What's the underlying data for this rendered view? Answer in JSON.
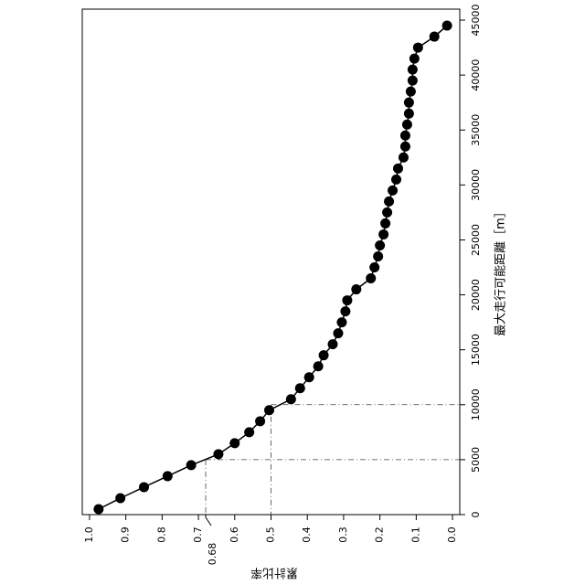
{
  "chart_data": {
    "type": "line",
    "orientation": "rotated-90-clockwise",
    "x_axis": {
      "label": "最大走行可能距離［m］",
      "range": [
        0,
        46000
      ],
      "ticks": [
        0,
        5000,
        10000,
        15000,
        20000,
        25000,
        30000,
        35000,
        40000,
        45000
      ],
      "tick_labels": [
        "0",
        "5000",
        "10000",
        "15000",
        "20000",
        "25000",
        "30000",
        "35000",
        "40000",
        "45000"
      ]
    },
    "y_axis": {
      "label": "累計比率",
      "range": [
        1.02,
        -0.02
      ],
      "ticks": [
        1.0,
        0.9,
        0.8,
        0.7,
        0.6,
        0.5,
        0.4,
        0.3,
        0.2,
        0.1,
        0.0
      ],
      "tick_labels": [
        "1.0",
        "0.9",
        "0.8",
        "0.7",
        "0.6",
        "0.5",
        "0.4",
        "0.3",
        "0.2",
        "0.1",
        "0.0"
      ],
      "extra_tick": {
        "value": 0.68,
        "label": "0.68"
      }
    },
    "series": [
      {
        "x": [
          500,
          1500,
          2500,
          3500,
          4500,
          5500,
          6500,
          7500,
          8500,
          9500,
          10500,
          11500,
          12500,
          13500,
          14500,
          15500,
          16500,
          17500,
          18500,
          19500,
          20500,
          21500,
          22500,
          23500,
          24500,
          25500,
          26500,
          27500,
          28500,
          29500,
          30500,
          31500,
          32500,
          33500,
          34500,
          35500,
          36500,
          37500,
          38500,
          39500,
          40500,
          41500,
          42500,
          43500,
          44500
        ],
        "y": [
          0.975,
          0.915,
          0.85,
          0.785,
          0.72,
          0.645,
          0.6,
          0.56,
          0.53,
          0.505,
          0.445,
          0.42,
          0.395,
          0.37,
          0.355,
          0.33,
          0.315,
          0.305,
          0.295,
          0.29,
          0.265,
          0.225,
          0.215,
          0.205,
          0.2,
          0.19,
          0.185,
          0.18,
          0.175,
          0.165,
          0.155,
          0.15,
          0.135,
          0.13,
          0.13,
          0.125,
          0.12,
          0.12,
          0.115,
          0.11,
          0.11,
          0.105,
          0.095,
          0.05,
          0.015
        ]
      }
    ],
    "reference_lines": [
      {
        "x": 5000,
        "y": 0.68
      },
      {
        "x": 10000,
        "y": 0.5
      }
    ],
    "grid": false,
    "legend": "none"
  }
}
